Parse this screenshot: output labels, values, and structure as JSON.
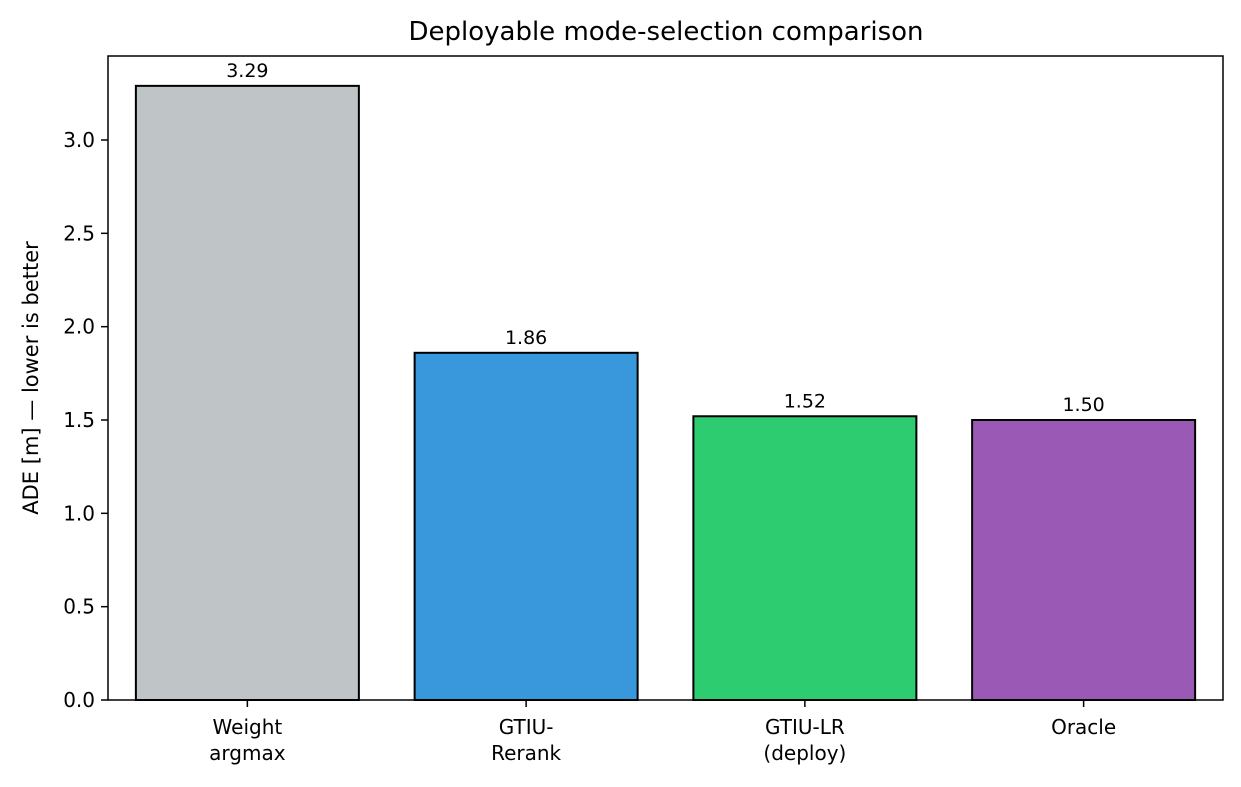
{
  "chart_data": {
    "type": "bar",
    "title": "Deployable mode-selection comparison",
    "xlabel": "",
    "ylabel": "ADE [m] — lower is better",
    "categories": [
      [
        "Weight",
        "argmax"
      ],
      [
        "GTIU-",
        "Rerank"
      ],
      [
        "GTIU-LR",
        "(deploy)"
      ],
      [
        "Oracle"
      ]
    ],
    "values": [
      3.29,
      1.86,
      1.52,
      1.5
    ],
    "value_labels": [
      "3.29",
      "1.86",
      "1.52",
      "1.50"
    ],
    "bar_colors": [
      "#bfc4c7",
      "#3898db",
      "#2ecc71",
      "#9b59b6"
    ],
    "edge_color": "#000000",
    "ylim": [
      0,
      3.45
    ],
    "yticks": [
      0.0,
      0.5,
      1.0,
      1.5,
      2.0,
      2.5,
      3.0
    ],
    "ytick_labels": [
      "0.0",
      "0.5",
      "1.0",
      "1.5",
      "2.0",
      "2.5",
      "3.0"
    ],
    "grid": false,
    "legend": "none"
  }
}
